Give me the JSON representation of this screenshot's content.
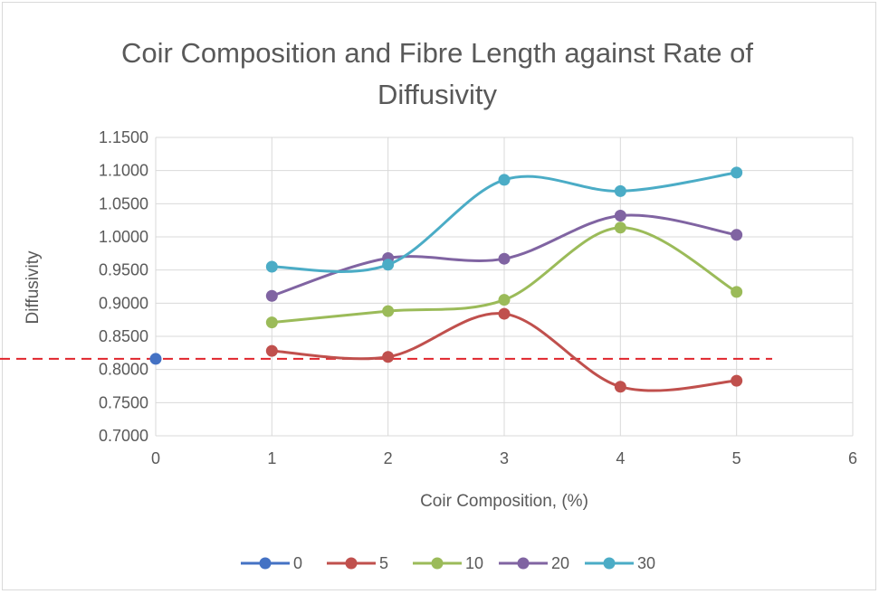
{
  "chart_data": {
    "type": "scatter",
    "title_lines": [
      "Coir Composition and Fibre Length against Rate of",
      "Diffusivity"
    ],
    "xlabel": "Coir Composition, (%)",
    "ylabel": "Diffusivity",
    "xlim": [
      0,
      6
    ],
    "ylim": [
      0.7,
      1.15
    ],
    "x_ticks": [
      "0",
      "1",
      "2",
      "3",
      "4",
      "5",
      "6"
    ],
    "y_ticks": [
      "0.7000",
      "0.7500",
      "0.8000",
      "0.8500",
      "0.9000",
      "0.9500",
      "1.0000",
      "1.0500",
      "1.1000",
      "1.1500"
    ],
    "grid": true,
    "legend_position": "bottom",
    "smooth_lines": true,
    "reference_line": {
      "y": 0.816,
      "style": "dashed",
      "color": "#e0242c"
    },
    "series": [
      {
        "name": "0",
        "color": "#4472c4",
        "x": [
          0
        ],
        "y": [
          0.816
        ]
      },
      {
        "name": "5",
        "color": "#c0504d",
        "x": [
          1,
          2,
          3,
          4,
          5
        ],
        "y": [
          0.828,
          0.819,
          0.884,
          0.774,
          0.783
        ]
      },
      {
        "name": "10",
        "color": "#9bbb59",
        "x": [
          1,
          2,
          3,
          4,
          5
        ],
        "y": [
          0.871,
          0.888,
          0.905,
          1.014,
          0.917
        ]
      },
      {
        "name": "20",
        "color": "#8064a2",
        "x": [
          1,
          2,
          3,
          4,
          5
        ],
        "y": [
          0.911,
          0.968,
          0.967,
          1.032,
          1.003
        ]
      },
      {
        "name": "30",
        "color": "#4bacc6",
        "x": [
          1,
          2,
          3,
          4,
          5
        ],
        "y": [
          0.955,
          0.958,
          1.086,
          1.069,
          1.097
        ]
      }
    ]
  }
}
